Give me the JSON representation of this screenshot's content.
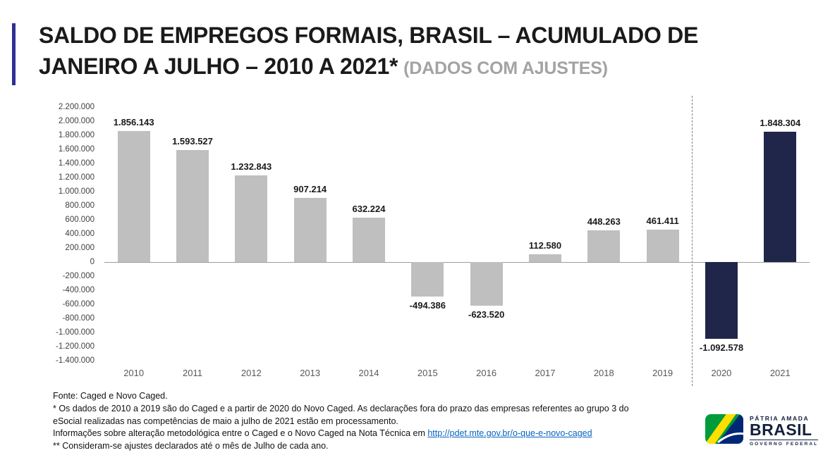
{
  "header": {
    "title": "SALDO DE EMPREGOS FORMAIS, BRASIL – ACUMULADO DE JANEIRO A JULHO – 2010 A 2021*",
    "subtitle": "(DADOS COM AJUSTES)",
    "accent_color": "#2e3192"
  },
  "chart_data": {
    "type": "bar",
    "title": "SALDO DE EMPREGOS FORMAIS, BRASIL – ACUMULADO DE JANEIRO A JULHO – 2010 A 2021* (DADOS COM AJUSTES)",
    "categories": [
      "2010",
      "2011",
      "2012",
      "2013",
      "2014",
      "2015",
      "2016",
      "2017",
      "2018",
      "2019",
      "2020",
      "2021"
    ],
    "values": [
      1856143,
      1593527,
      1232843,
      907214,
      632224,
      -494386,
      -623520,
      112580,
      448263,
      461411,
      -1092578,
      1848304
    ],
    "value_labels": [
      "1.856.143",
      "1.593.527",
      "1.232.843",
      "907.214",
      "632.224",
      "-494.386",
      "-623.520",
      "112.580",
      "448.263",
      "461.411",
      "-1.092.578",
      "1.848.304"
    ],
    "bar_colors": [
      "gray",
      "gray",
      "gray",
      "gray",
      "gray",
      "gray",
      "gray",
      "gray",
      "gray",
      "gray",
      "navy",
      "navy"
    ],
    "colors": {
      "gray": "#bfbfbf",
      "navy": "#20264a"
    },
    "xlabel": "",
    "ylabel": "",
    "ylim": [
      -1400000,
      2200000
    ],
    "ytick_step": 200000,
    "ytick_labels": [
      "2.200.000",
      "2.000.000",
      "1.800.000",
      "1.600.000",
      "1.400.000",
      "1.200.000",
      "1.000.000",
      "800.000",
      "600.000",
      "400.000",
      "200.000",
      "0",
      "-200.000",
      "-400.000",
      "-600.000",
      "-800.000",
      "-1.000.000",
      "-1.200.000",
      "-1.400.000"
    ],
    "grid": false,
    "legend": "none",
    "separator_after_index": 9
  },
  "footer": {
    "fonte": "Fonte: Caged e Novo Caged.",
    "note1": "* Os dados de 2010 a 2019 são do Caged e a partir de 2020 do Novo Caged. As declarações fora do prazo das empresas referentes ao grupo 3 do eSocial realizadas nas competências de maio a julho de 2021 estão em processamento.",
    "note2_prefix": "Informações sobre alteração metodológica entre o Caged e o Novo Caged na Nota Técnica em ",
    "note2_link": "http://pdet.mte.gov.br/o-que-e-novo-caged",
    "note3": "** Consideram-se ajustes declarados até o mês de Julho de cada ano."
  },
  "logo": {
    "line1": "PÁTRIA AMADA",
    "line2": "BRASIL",
    "line3": "GOVERNO FEDERAL",
    "green": "#009c3b",
    "yellow": "#ffdf00",
    "blue": "#002776"
  }
}
